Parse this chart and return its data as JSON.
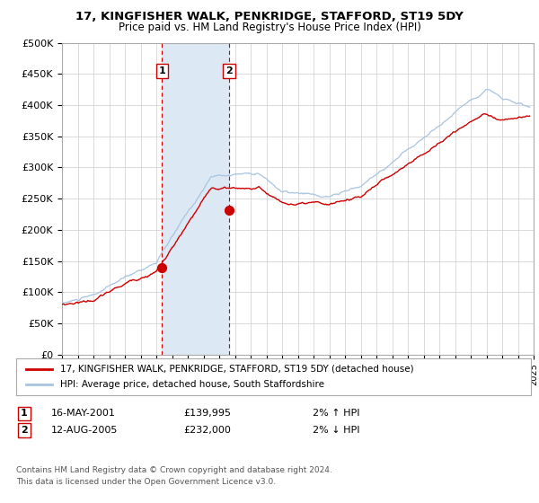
{
  "title": "17, KINGFISHER WALK, PENKRIDGE, STAFFORD, ST19 5DY",
  "subtitle": "Price paid vs. HM Land Registry's House Price Index (HPI)",
  "legend_line1": "17, KINGFISHER WALK, PENKRIDGE, STAFFORD, ST19 5DY (detached house)",
  "legend_line2": "HPI: Average price, detached house, South Staffordshire",
  "annotation1_label": "1",
  "annotation1_date": "16-MAY-2001",
  "annotation1_price": "£139,995",
  "annotation1_hpi": "2% ↑ HPI",
  "annotation2_label": "2",
  "annotation2_date": "12-AUG-2005",
  "annotation2_price": "£232,000",
  "annotation2_hpi": "2% ↓ HPI",
  "footer_line1": "Contains HM Land Registry data © Crown copyright and database right 2024.",
  "footer_line2": "This data is licensed under the Open Government Licence v3.0.",
  "sale1_year": 2001.37,
  "sale1_value": 139995,
  "sale2_year": 2005.62,
  "sale2_value": 232000,
  "hpi_color": "#a8c4e0",
  "price_color": "#cc0000",
  "sale_marker_color": "#cc0000",
  "shaded_region_color": "#dce9f5",
  "shaded_x1": 2001.37,
  "shaded_x2": 2005.62,
  "ylim_min": 0,
  "ylim_max": 500000,
  "ytick_step": 50000,
  "xmin": 1995,
  "xmax": 2025,
  "background_color": "#ffffff",
  "grid_color": "#cccccc",
  "box_label_color": "#cc0000"
}
